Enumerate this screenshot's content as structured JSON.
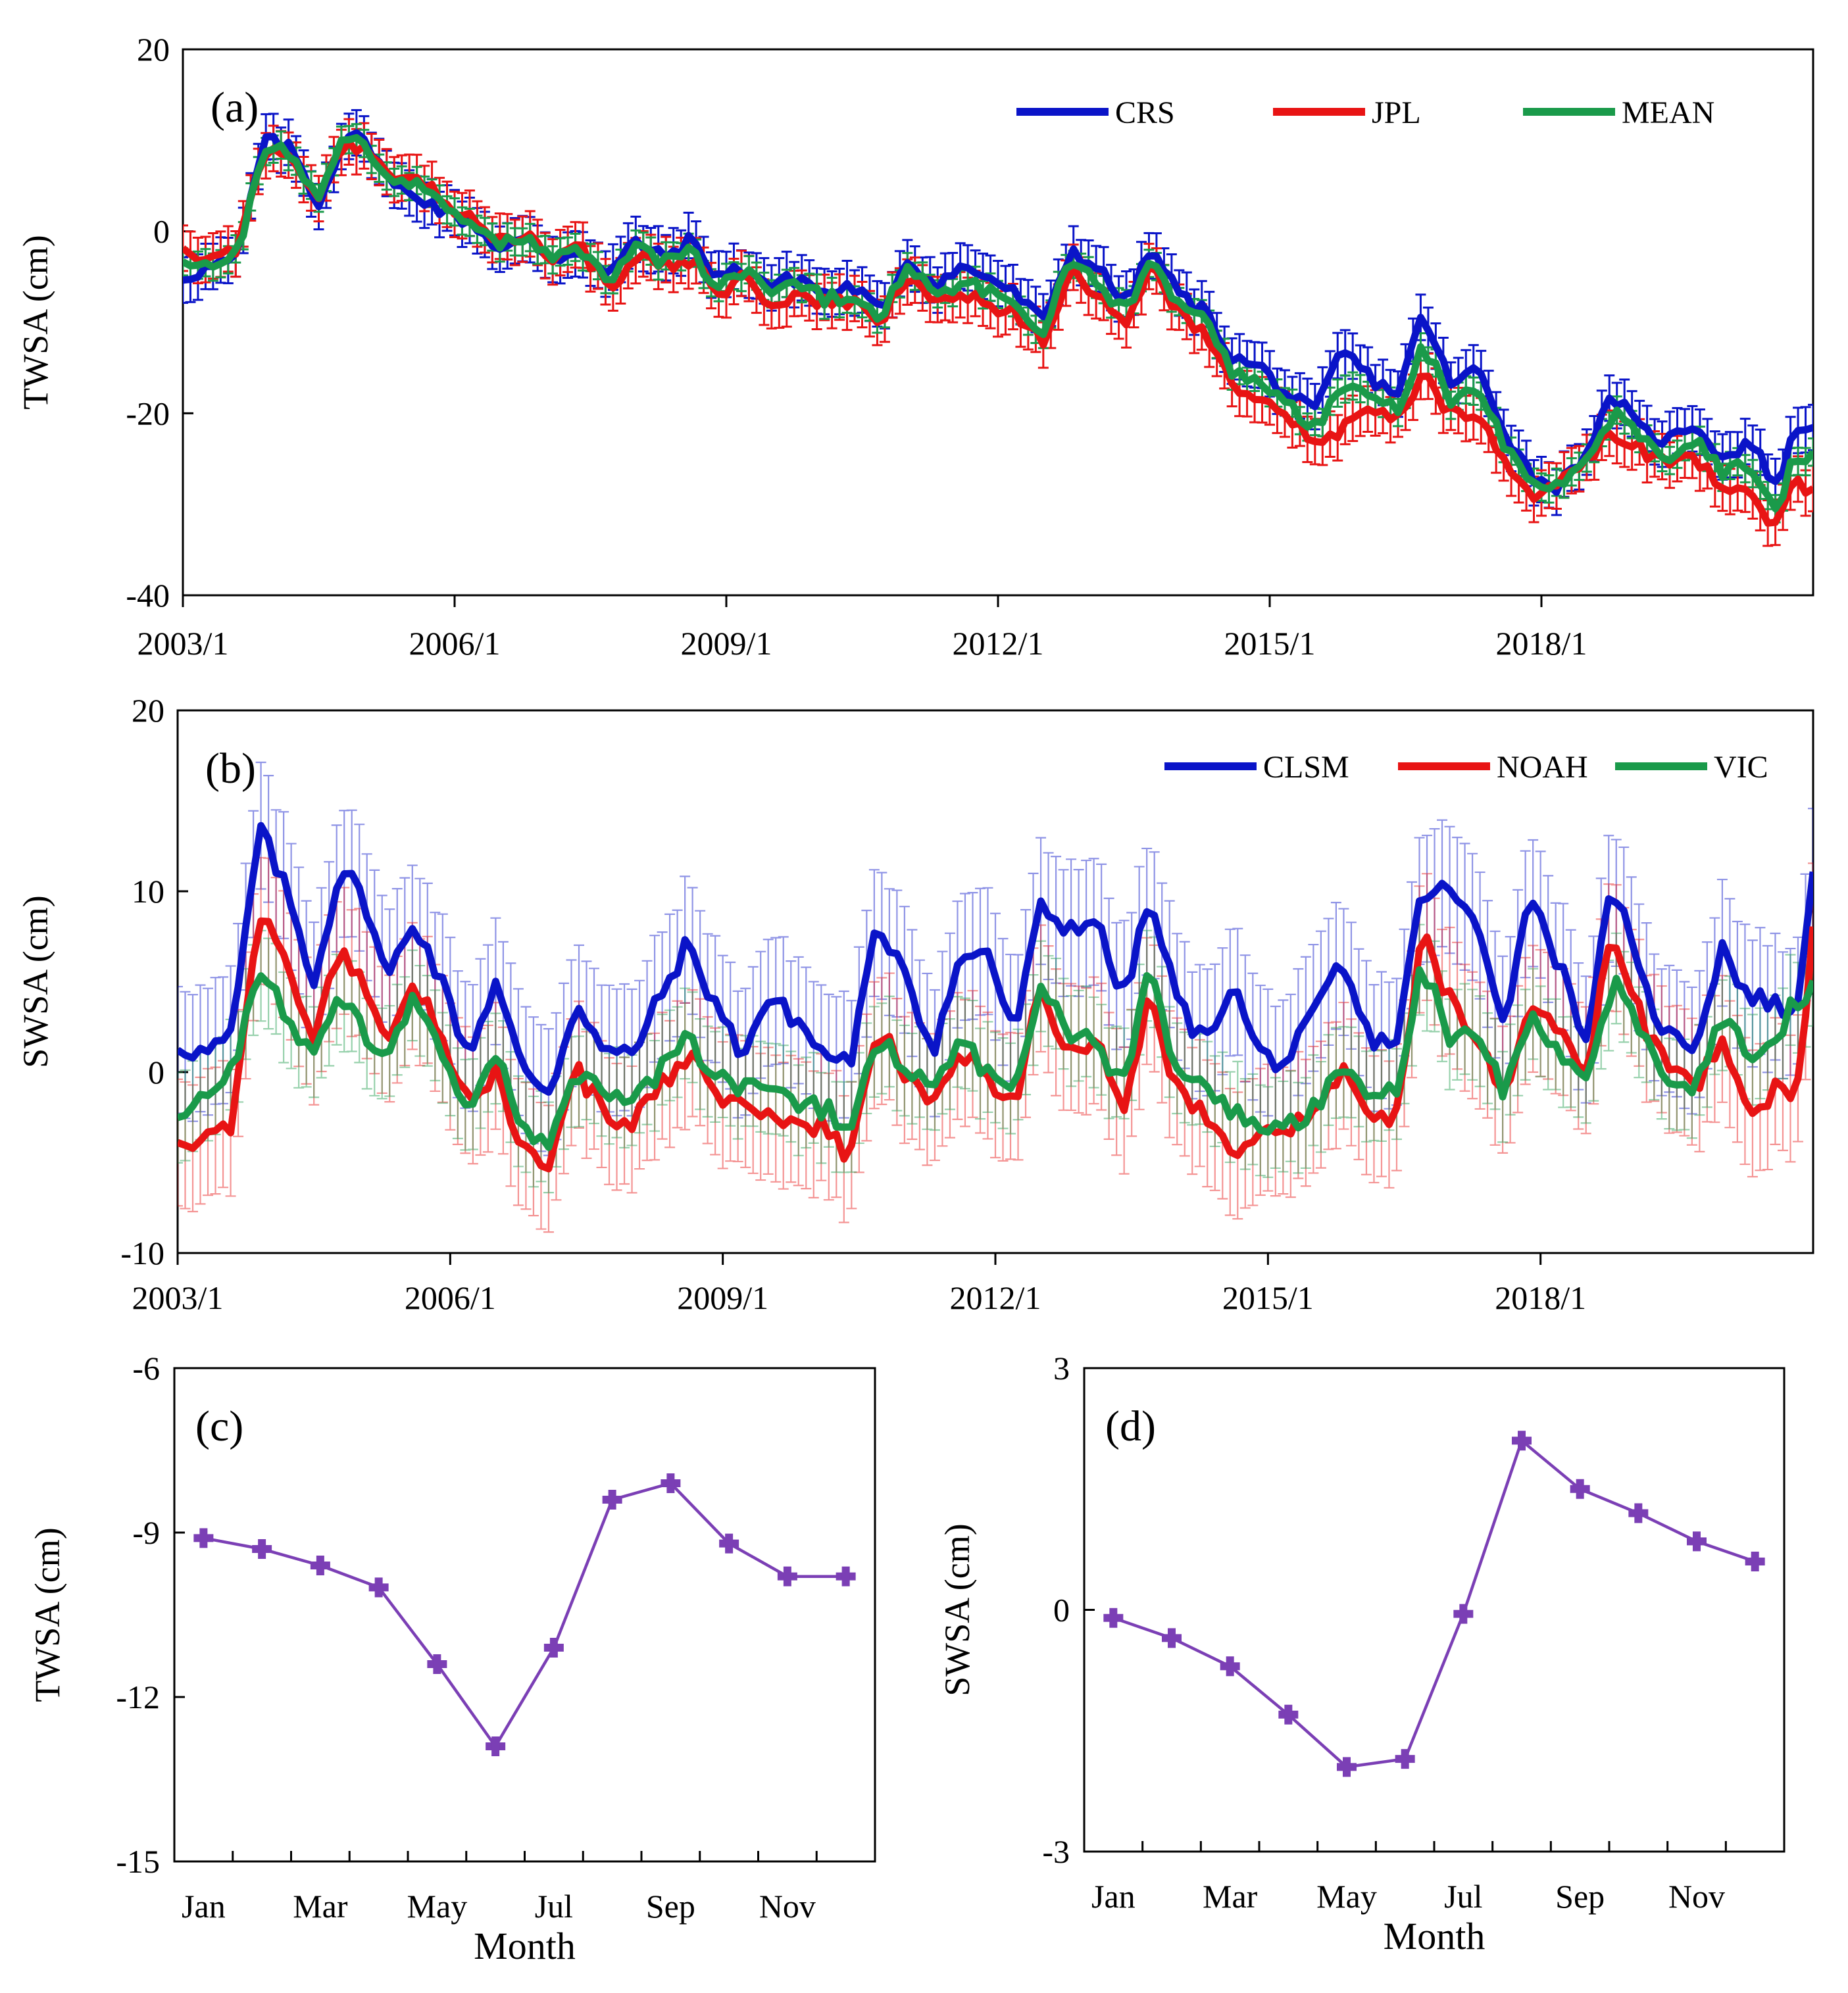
{
  "chart_data": [
    {
      "id": "a",
      "type": "line",
      "panel_label": "(a)",
      "ylabel": "TWSA (cm)",
      "xlabel": "",
      "ylim": [
        -40,
        20
      ],
      "yticks": [
        -40,
        -20,
        0,
        20
      ],
      "xlim": [
        2003.0,
        2021.0
      ],
      "xticks": [
        2003,
        2006,
        2009,
        2012,
        2015,
        2018
      ],
      "xtick_labels": [
        "2003/1",
        "2006/1",
        "2009/1",
        "2012/1",
        "2015/1",
        "2018/1"
      ],
      "legend": "top-right",
      "x_keyframes": [
        2003.0,
        2003.3,
        2003.6,
        2003.9,
        2004.2,
        2004.5,
        2004.8,
        2005.1,
        2005.3,
        2005.6,
        2005.9,
        2006.2,
        2006.5,
        2006.8,
        2007.1,
        2007.4,
        2007.7,
        2008.0,
        2008.3,
        2008.6,
        2008.9,
        2009.2,
        2009.5,
        2009.8,
        2010.1,
        2010.4,
        2010.7,
        2011.0,
        2011.3,
        2011.6,
        2011.9,
        2012.2,
        2012.5,
        2012.8,
        2013.1,
        2013.4,
        2013.7,
        2014.0,
        2014.3,
        2014.6,
        2014.9,
        2015.2,
        2015.5,
        2015.8,
        2016.1,
        2016.4,
        2016.7,
        2017.0,
        2017.3,
        2017.6,
        2017.9,
        2018.2,
        2018.5,
        2018.8,
        2019.1,
        2019.4,
        2019.7,
        2020.0,
        2020.3,
        2020.6,
        2020.8,
        2021.0
      ],
      "series": [
        {
          "name": "CRS",
          "color": "#0a14c8",
          "err": 2.5,
          "values": [
            -5,
            -4,
            -3,
            10,
            9,
            3,
            11,
            9,
            5,
            4,
            2,
            1,
            -2,
            -1,
            -3,
            -2,
            -5,
            -1,
            -3,
            -1,
            -5,
            -4,
            -6,
            -5,
            -7,
            -6,
            -9,
            -3,
            -6,
            -4,
            -5,
            -7,
            -10,
            -2,
            -4,
            -8,
            -2,
            -7,
            -9,
            -14,
            -15,
            -18,
            -20,
            -13,
            -16,
            -18,
            -9,
            -17,
            -15,
            -22,
            -27,
            -28,
            -24,
            -18,
            -22,
            -23,
            -21,
            -25,
            -23,
            -28,
            -22,
            -21
          ]
        },
        {
          "name": "JPL",
          "color": "#e81414",
          "err": 2.5,
          "values": [
            -2,
            -3,
            -2,
            9,
            8,
            4,
            10,
            8,
            5,
            6,
            3,
            1,
            -1,
            0,
            -3,
            -2,
            -6,
            -3,
            -4,
            -3,
            -7,
            -5,
            -8,
            -7,
            -8,
            -8,
            -10,
            -5,
            -8,
            -7,
            -8,
            -9,
            -12,
            -4,
            -7,
            -10,
            -4,
            -9,
            -11,
            -17,
            -18,
            -20,
            -23,
            -22,
            -19,
            -21,
            -16,
            -20,
            -20,
            -25,
            -29,
            -28,
            -25,
            -22,
            -24,
            -26,
            -25,
            -28,
            -28,
            -33,
            -27,
            -29
          ]
        },
        {
          "name": "MEAN",
          "color": "#1a9a4a",
          "err": 1.5,
          "values": [
            -4,
            -3.5,
            -2.5,
            9.5,
            8.5,
            3.5,
            10.5,
            8.5,
            5,
            5,
            2.5,
            1,
            -1.5,
            -0.5,
            -3,
            -2,
            -5.5,
            -2,
            -3.5,
            -2,
            -6,
            -4.5,
            -7,
            -6,
            -7.5,
            -7,
            -9.5,
            -4,
            -7,
            -5.5,
            -6.5,
            -8,
            -11,
            -3,
            -5.5,
            -9,
            -3,
            -8,
            -10,
            -15.5,
            -16.5,
            -19,
            -21.5,
            -17.5,
            -17.5,
            -19.5,
            -12.5,
            -18.5,
            -17.5,
            -23.5,
            -28,
            -28,
            -24.5,
            -20,
            -23,
            -24.5,
            -23,
            -26.5,
            -25.5,
            -30.5,
            -24.5,
            -25
          ]
        }
      ]
    },
    {
      "id": "b",
      "type": "line",
      "panel_label": "(b)",
      "ylabel": "SWSA (cm)",
      "xlabel": "",
      "ylim": [
        -10,
        20
      ],
      "yticks": [
        -10,
        0,
        10,
        20
      ],
      "xlim": [
        2003.0,
        2021.0
      ],
      "xticks": [
        2003,
        2006,
        2009,
        2012,
        2015,
        2018
      ],
      "xtick_labels": [
        "2003/1",
        "2006/1",
        "2009/1",
        "2012/1",
        "2015/1",
        "2018/1"
      ],
      "legend": "top-right",
      "x_keyframes": [
        2003.0,
        2003.3,
        2003.6,
        2003.9,
        2004.2,
        2004.5,
        2004.8,
        2005.1,
        2005.3,
        2005.6,
        2005.9,
        2006.2,
        2006.5,
        2006.8,
        2007.1,
        2007.4,
        2007.7,
        2008.0,
        2008.3,
        2008.6,
        2008.9,
        2009.2,
        2009.5,
        2009.8,
        2010.1,
        2010.4,
        2010.7,
        2011.0,
        2011.3,
        2011.6,
        2011.9,
        2012.2,
        2012.5,
        2012.8,
        2013.1,
        2013.4,
        2013.7,
        2014.0,
        2014.3,
        2014.6,
        2014.9,
        2015.2,
        2015.5,
        2015.8,
        2016.1,
        2016.4,
        2016.7,
        2017.0,
        2017.3,
        2017.6,
        2017.9,
        2018.2,
        2018.5,
        2018.8,
        2019.1,
        2019.4,
        2019.7,
        2020.0,
        2020.3,
        2020.6,
        2020.8,
        2021.0
      ],
      "series": [
        {
          "name": "CLSM",
          "color": "#0a14c8",
          "err": 3.5,
          "values": [
            1.5,
            1,
            2,
            13.5,
            10,
            5,
            11.5,
            9,
            5,
            8.5,
            5,
            1,
            5,
            0,
            -1,
            4,
            1,
            1,
            4,
            7,
            4,
            1,
            4,
            3,
            1,
            0.5,
            8,
            6,
            1,
            6,
            7,
            2,
            9,
            8,
            8.5,
            4,
            9.5,
            4,
            1.5,
            5,
            1,
            0.5,
            3,
            6,
            2,
            1.5,
            10,
            10,
            8,
            3,
            10,
            6,
            2,
            10.5,
            5,
            2,
            1.5,
            7,
            4,
            4,
            2.5,
            11.5
          ]
        },
        {
          "name": "NOAH",
          "color": "#e81414",
          "err": 3.5,
          "values": [
            -4,
            -3.5,
            -3,
            9,
            6,
            2,
            7,
            4,
            1,
            5,
            2,
            -2,
            0,
            -4,
            -5,
            0,
            -2,
            -3,
            -1,
            1,
            -1,
            -2,
            -2,
            -3,
            -3,
            -5,
            2.5,
            0,
            -2,
            1,
            0,
            -2,
            5,
            1,
            2,
            -2,
            4,
            -1,
            -2,
            -4.5,
            -3,
            -3,
            -2,
            0,
            -2,
            -3,
            7.5,
            4,
            2,
            -1,
            4,
            2,
            0,
            8,
            3,
            0,
            -1,
            2,
            -2,
            -1,
            -2,
            7.5
          ]
        },
        {
          "name": "VIC",
          "color": "#1a9a4a",
          "err": 2.5,
          "values": [
            -3,
            -1,
            0,
            6,
            3,
            1,
            4,
            2,
            0.5,
            4,
            1,
            -2,
            1,
            -3,
            -4,
            0,
            -1,
            -2,
            0,
            2,
            0,
            -1,
            -1,
            -2,
            -2,
            -3,
            2,
            0,
            -1,
            2,
            0,
            -1,
            5,
            2,
            2,
            -1,
            6,
            0,
            -1,
            -2,
            -3,
            -3,
            -2,
            0,
            -1,
            -1,
            6,
            2,
            2,
            -1,
            3,
            1,
            0,
            5,
            2,
            0,
            -1,
            3,
            1,
            2,
            4,
            4.5
          ]
        }
      ]
    },
    {
      "id": "c",
      "type": "line",
      "panel_label": "(c)",
      "ylabel": "TWSA (cm)",
      "xlabel": "Month",
      "ylim": [
        -15,
        -6
      ],
      "yticks": [
        -15,
        -12,
        -9,
        -6
      ],
      "xtick_labels": [
        "Jan",
        "Mar",
        "May",
        "Jul",
        "Sep",
        "Nov"
      ],
      "categories": [
        "Jan",
        "Feb",
        "Mar",
        "Apr",
        "May",
        "Jun",
        "Jul",
        "Aug",
        "Sep",
        "Oct",
        "Nov",
        "Dec"
      ],
      "series": [
        {
          "name": "TWSA",
          "color": "#7b3fb5",
          "values": [
            -9.1,
            -9.3,
            -9.6,
            -10.0,
            -11.4,
            -12.9,
            -11.1,
            -8.4,
            -8.1,
            -9.2,
            -9.8,
            -9.8
          ]
        }
      ]
    },
    {
      "id": "d",
      "type": "line",
      "panel_label": "(d)",
      "ylabel": "SWSA (cm)",
      "xlabel": "Month",
      "ylim": [
        -3,
        3
      ],
      "yticks": [
        -3,
        0,
        3
      ],
      "xtick_labels": [
        "Jan",
        "Mar",
        "May",
        "Jul",
        "Sep",
        "Nov"
      ],
      "categories": [
        "Jan",
        "Feb",
        "Mar",
        "Apr",
        "May",
        "Jun",
        "Jul",
        "Aug",
        "Sep",
        "Oct",
        "Nov",
        "Dec"
      ],
      "series": [
        {
          "name": "SWSA",
          "color": "#7b3fb5",
          "values": [
            -0.1,
            -0.35,
            -0.7,
            -1.3,
            -1.95,
            -1.85,
            -0.05,
            2.1,
            1.5,
            1.2,
            0.85,
            0.6
          ]
        }
      ]
    }
  ]
}
